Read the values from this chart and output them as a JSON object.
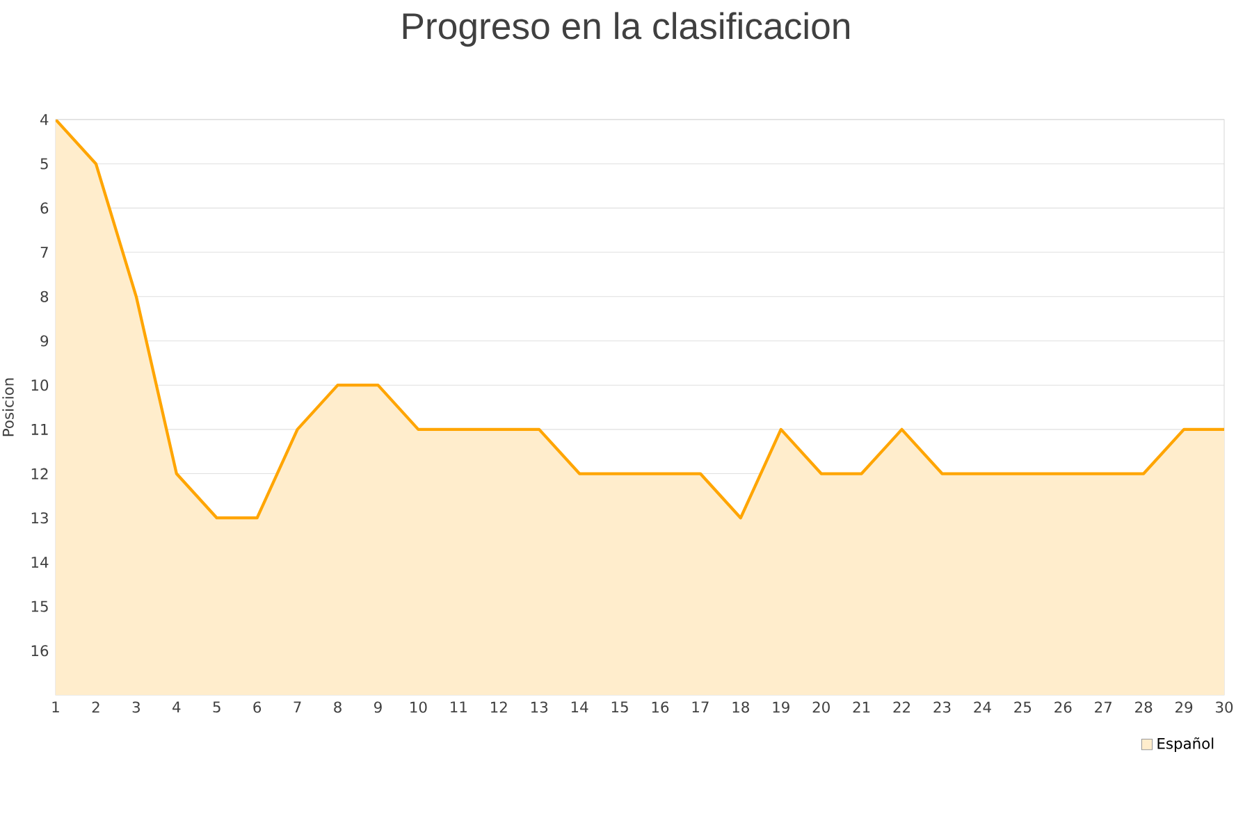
{
  "chart_data": {
    "type": "area",
    "title": "Progreso en la clasificacion",
    "ylabel": "Posicion",
    "x": [
      1,
      2,
      3,
      4,
      5,
      6,
      7,
      8,
      9,
      10,
      11,
      12,
      13,
      14,
      15,
      16,
      17,
      18,
      19,
      20,
      21,
      22,
      23,
      24,
      25,
      26,
      27,
      28,
      29,
      30
    ],
    "series": [
      {
        "name": "Español",
        "color": "#ffa500",
        "values": [
          4,
          5,
          8,
          12,
          13,
          13,
          11,
          10,
          10,
          11,
          11,
          11,
          11,
          12,
          12,
          12,
          12,
          13,
          11,
          12,
          12,
          11,
          12,
          12,
          12,
          12,
          12,
          12,
          11,
          11
        ]
      }
    ],
    "xlim": [
      1,
      30
    ],
    "xticks": [
      1,
      2,
      3,
      4,
      5,
      6,
      7,
      8,
      9,
      10,
      11,
      12,
      13,
      14,
      15,
      16,
      17,
      18,
      19,
      20,
      21,
      22,
      23,
      24,
      25,
      26,
      27,
      28,
      29,
      30
    ],
    "ylim": [
      17,
      4
    ],
    "yticks": [
      4,
      5,
      6,
      7,
      8,
      9,
      10,
      11,
      12,
      13,
      14,
      15,
      16
    ],
    "grid": "y",
    "legend": "bottom right"
  }
}
